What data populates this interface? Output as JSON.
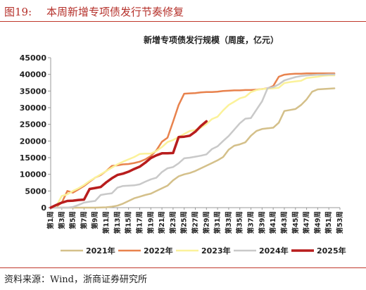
{
  "header": {
    "figure_number": "图19:",
    "figure_title": "本周新增专项债发行节奏修复"
  },
  "source": "资料来源：Wind，浙商证券研究所",
  "chart_data": {
    "type": "line",
    "title": "新增专项债发行规模（周度，亿元）",
    "ylim": [
      0,
      45000
    ],
    "yticks": [
      0,
      5000,
      10000,
      15000,
      20000,
      25000,
      30000,
      35000,
      40000,
      45000
    ],
    "x_tick_labels": [
      "第1周",
      "第3周",
      "第5周",
      "第7周",
      "第9周",
      "第11周",
      "第13周",
      "第15周",
      "第17周",
      "第19周",
      "第21周",
      "第23周",
      "第25周",
      "第27周",
      "第29周",
      "第31周",
      "第33周",
      "第35周",
      "第37周",
      "第39周",
      "第41周",
      "第43周",
      "第45周",
      "第47周",
      "第49周",
      "第51周",
      "第53周"
    ],
    "legend_position": "bottom",
    "series": [
      {
        "name": "2021年",
        "color": "#d4c08a",
        "width": 2.5,
        "x": [
          1,
          3,
          5,
          7,
          9,
          11,
          12,
          13,
          14,
          15,
          16,
          17,
          18,
          19,
          20,
          21,
          22,
          23,
          24,
          25,
          26,
          27,
          28,
          29,
          30,
          31,
          32,
          33,
          34,
          35,
          36,
          37,
          38,
          39,
          40,
          41,
          42,
          43,
          44,
          45,
          46,
          47,
          48,
          49,
          50,
          51,
          52
        ],
        "y": [
          0,
          0,
          0,
          0,
          0,
          100,
          300,
          600,
          1200,
          2000,
          2800,
          3300,
          3800,
          4200,
          5000,
          5800,
          6600,
          8200,
          9400,
          10000,
          10400,
          11000,
          11800,
          12600,
          13400,
          14200,
          15200,
          17400,
          18600,
          19000,
          19600,
          21600,
          23000,
          23600,
          23800,
          24000,
          25500,
          29000,
          29300,
          29600,
          30800,
          32500,
          34800,
          35500,
          35600,
          35700,
          35800
        ]
      },
      {
        "name": "2022年",
        "color": "#e8824d",
        "width": 2.5,
        "x": [
          1,
          2,
          3,
          4,
          5,
          6,
          7,
          8,
          9,
          10,
          11,
          12,
          13,
          14,
          15,
          16,
          17,
          18,
          19,
          20,
          21,
          22,
          23,
          24,
          25,
          26,
          27,
          28,
          29,
          30,
          31,
          32,
          33,
          34,
          35,
          36,
          37,
          38,
          39,
          40,
          41,
          42,
          43,
          44,
          45,
          46,
          47,
          48,
          49,
          50,
          51,
          52
        ],
        "y": [
          0,
          300,
          1500,
          5000,
          4500,
          5500,
          6500,
          7800,
          9000,
          9800,
          11000,
          12500,
          12700,
          13000,
          13100,
          13400,
          13800,
          14500,
          15500,
          17200,
          19800,
          21000,
          25800,
          30800,
          34200,
          34300,
          34400,
          34600,
          34700,
          34700,
          34800,
          35000,
          35100,
          35200,
          35200,
          35300,
          35300,
          35400,
          35600,
          35800,
          36500,
          39300,
          39900,
          40100,
          40200,
          40200,
          40300,
          40300,
          40300,
          40300,
          40300,
          40300
        ]
      },
      {
        "name": "2023年",
        "color": "#fbf29a",
        "width": 2.5,
        "x": [
          1,
          2,
          3,
          4,
          5,
          6,
          7,
          8,
          9,
          10,
          11,
          12,
          13,
          14,
          15,
          16,
          17,
          18,
          19,
          20,
          21,
          22,
          23,
          24,
          25,
          26,
          27,
          28,
          29,
          30,
          31,
          32,
          33,
          34,
          35,
          36,
          37,
          38,
          39,
          40,
          41,
          42,
          43,
          44,
          45,
          46,
          47,
          48,
          49,
          50,
          51,
          52
        ],
        "y": [
          0,
          400,
          3500,
          4000,
          5000,
          5800,
          6800,
          8000,
          9000,
          10000,
          11000,
          12000,
          13000,
          13800,
          14500,
          15200,
          16100,
          16200,
          16200,
          17000,
          18200,
          19700,
          20300,
          21200,
          22100,
          23000,
          23300,
          24000,
          25100,
          26600,
          27300,
          29200,
          30800,
          31800,
          32800,
          33300,
          34700,
          35300,
          35600,
          35700,
          35800,
          36000,
          37400,
          37700,
          37900,
          38100,
          38900,
          39100,
          39300,
          39600,
          39700,
          39700
        ]
      },
      {
        "name": "2024年",
        "color": "#c9c9c9",
        "width": 2.5,
        "x": [
          1,
          2,
          3,
          4,
          5,
          6,
          7,
          8,
          9,
          10,
          11,
          12,
          13,
          14,
          15,
          16,
          17,
          18,
          19,
          20,
          21,
          22,
          23,
          24,
          25,
          26,
          27,
          28,
          29,
          30,
          31,
          32,
          33,
          34,
          35,
          36,
          37,
          38,
          39,
          40,
          41,
          42,
          43,
          44,
          45,
          46,
          47,
          48,
          49,
          50,
          51,
          52
        ],
        "y": [
          0,
          0,
          0,
          0,
          200,
          800,
          1500,
          1800,
          2000,
          3800,
          4100,
          4300,
          6000,
          6500,
          6600,
          6700,
          7000,
          7800,
          8500,
          9000,
          10700,
          11800,
          12200,
          13300,
          14800,
          15000,
          15300,
          15600,
          16000,
          17600,
          18400,
          20000,
          21500,
          23400,
          25300,
          26700,
          26900,
          29400,
          31900,
          35900,
          36200,
          37000,
          38200,
          38700,
          39200,
          39500,
          39700,
          39800,
          39900,
          39900,
          40000,
          40000
        ]
      },
      {
        "name": "2025年",
        "color": "#b81d1d",
        "width": 3.5,
        "x": [
          1,
          2,
          3,
          4,
          5,
          6,
          7,
          8,
          9,
          10,
          11,
          12,
          13,
          14,
          15,
          16,
          17,
          18,
          19,
          20,
          21,
          22,
          23,
          24,
          25,
          26,
          27,
          28,
          29
        ],
        "y": [
          0,
          800,
          1500,
          2000,
          2100,
          2300,
          2400,
          5600,
          5900,
          6200,
          7600,
          8800,
          9800,
          10200,
          10800,
          11600,
          12300,
          13500,
          14900,
          15700,
          16300,
          16300,
          16400,
          21200,
          21300,
          21600,
          22800,
          24500,
          25900
        ]
      }
    ]
  }
}
